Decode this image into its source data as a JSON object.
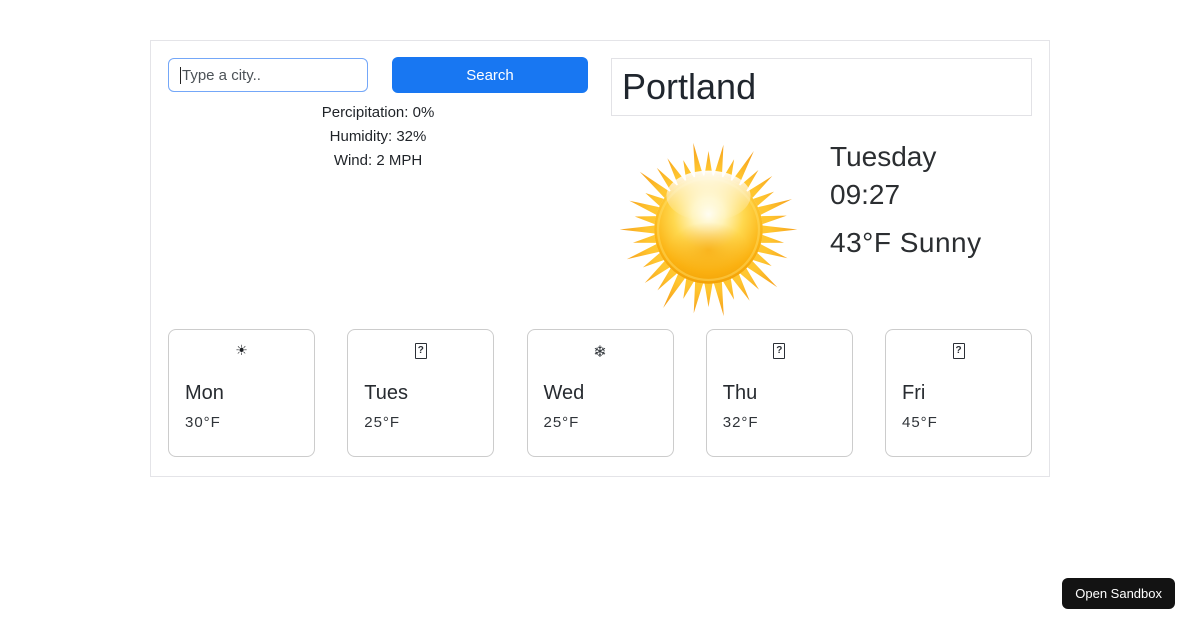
{
  "search": {
    "placeholder": "Type a city..",
    "button_label": "Search"
  },
  "stats": {
    "precipitation": "Percipitation: 0%",
    "humidity": "Humidity: 32%",
    "wind": "Wind: 2 MPH"
  },
  "current": {
    "city": "Portland",
    "day": "Tuesday",
    "time": "09:27",
    "condition": "43°F Sunny",
    "icon": "glossy-sun"
  },
  "forecast": [
    {
      "day": "Mon",
      "temp": "30°F",
      "icon": "sun-icon",
      "glyph": "☀"
    },
    {
      "day": "Tues",
      "temp": "25°F",
      "icon": "missing-glyph-icon",
      "glyph": "?"
    },
    {
      "day": "Wed",
      "temp": "25°F",
      "icon": "snowflake-icon",
      "glyph": "❄"
    },
    {
      "day": "Thu",
      "temp": "32°F",
      "icon": "missing-glyph-icon",
      "glyph": "?"
    },
    {
      "day": "Fri",
      "temp": "45°F",
      "icon": "missing-glyph-icon",
      "glyph": "?"
    }
  ],
  "sandbox": {
    "open_label": "Open Sandbox"
  },
  "colors": {
    "accent_blue": "#1877f2",
    "input_border": "#74a7f8",
    "container_border": "#e4e4e8",
    "card_border": "#cccccc",
    "text_dark": "#24292e",
    "sun_yellow": "#ffd23f",
    "sun_orange": "#f09a00",
    "sandbox_button_bg": "#131313"
  }
}
